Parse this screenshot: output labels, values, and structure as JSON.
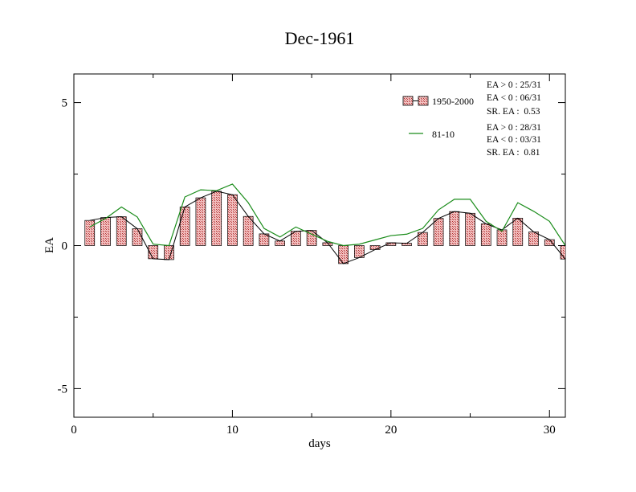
{
  "chart_data": {
    "type": "bar",
    "title": "Dec-1961",
    "xlabel": "days",
    "ylabel": "EA",
    "xlim": [
      0,
      31
    ],
    "ylim": [
      -6,
      6
    ],
    "x_ticks": [
      0,
      10,
      20,
      30
    ],
    "x_tick_labels": [
      "0",
      "10",
      "20",
      "30"
    ],
    "y_ticks": [
      -5,
      0,
      5
    ],
    "y_tick_labels": [
      "-5",
      "0",
      "5"
    ],
    "grid": false,
    "legend_position": "top-right",
    "x": [
      1,
      2,
      3,
      4,
      5,
      6,
      7,
      8,
      9,
      10,
      11,
      12,
      13,
      14,
      15,
      16,
      17,
      18,
      19,
      20,
      21,
      22,
      23,
      24,
      25,
      26,
      27,
      28,
      29,
      30,
      31
    ],
    "series": [
      {
        "name": "1950-2000",
        "render": "bar",
        "color": "#e07070",
        "values": [
          0.88,
          0.98,
          1.01,
          0.59,
          -0.46,
          -0.49,
          1.35,
          1.67,
          1.9,
          1.78,
          1.02,
          0.41,
          0.16,
          0.5,
          0.53,
          0.1,
          -0.63,
          -0.42,
          -0.14,
          0.1,
          0.08,
          0.46,
          0.95,
          1.19,
          1.13,
          0.76,
          0.55,
          0.96,
          0.48,
          0.21,
          -0.47
        ],
        "stats": [
          "EA > 0 : 25/31",
          "EA < 0 : 06/31",
          "SR. EA :  0.53"
        ]
      },
      {
        "name": "81-10",
        "render": "line",
        "color": "#1a8c1a",
        "values": [
          0.65,
          0.95,
          1.35,
          1.0,
          0.05,
          0.0,
          1.7,
          1.95,
          1.92,
          2.15,
          1.5,
          0.6,
          0.3,
          0.65,
          0.4,
          0.15,
          0.0,
          0.05,
          0.2,
          0.35,
          0.4,
          0.6,
          1.25,
          1.62,
          1.62,
          0.85,
          0.5,
          1.5,
          1.2,
          0.85,
          0.0
        ]
      }
    ],
    "second_stats": [
      "EA > 0 : 28/31",
      "EA < 0 : 03/31",
      "SR. EA :  0.81"
    ]
  }
}
